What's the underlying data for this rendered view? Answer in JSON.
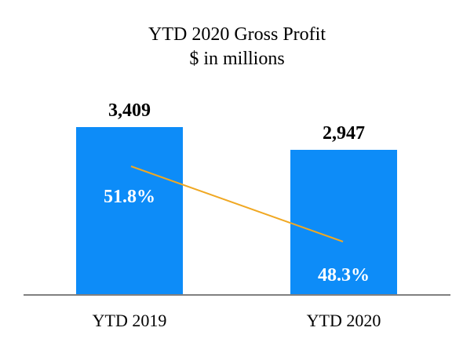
{
  "chart_data": {
    "type": "bar",
    "title": "YTD 2020 Gross Profit",
    "subtitle": "$ in millions",
    "categories": [
      "YTD 2019",
      "YTD 2020"
    ],
    "series": [
      {
        "values": [
          3409,
          2947
        ],
        "value_labels": [
          "3,409",
          "2,947"
        ],
        "color": "#0d8cf8"
      }
    ],
    "line_series": [
      {
        "values": [
          51.8,
          48.3
        ],
        "value_labels": [
          "51.8%",
          "48.3%"
        ],
        "color": "#f0a823"
      }
    ],
    "ylim": [
      0,
      3409
    ],
    "grid": false,
    "legend": "none"
  }
}
